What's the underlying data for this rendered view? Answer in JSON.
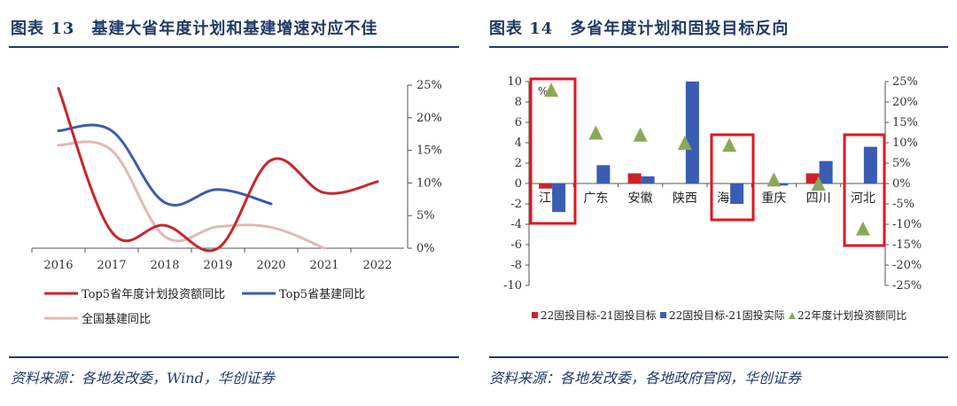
{
  "left": {
    "title": "图表 13　基建大省年度计划和基建增速对应不佳",
    "source": "资料来源：各地发改委，Wind，华创证券",
    "chart_data": {
      "type": "line",
      "x": [
        "2016",
        "2017",
        "2018",
        "2019",
        "2020",
        "2021",
        "2022"
      ],
      "y_right_ticks": [
        "25%",
        "20%",
        "15%",
        "10%",
        "5%",
        "0%"
      ],
      "ylim": [
        0,
        25
      ],
      "series": [
        {
          "name": "Top5省年度计划投资额同比",
          "color": "#c8262b",
          "values": [
            24.5,
            2.5,
            3.5,
            0.0,
            13.5,
            8.5,
            10.2
          ]
        },
        {
          "name": "Top5省基建同比",
          "color": "#3b5cb0",
          "values": [
            18.0,
            18.0,
            7.0,
            9.0,
            6.8,
            null,
            null
          ]
        },
        {
          "name": "全国基建同比",
          "color": "#e3b8b8",
          "values": [
            15.8,
            15.0,
            1.8,
            3.3,
            3.2,
            0.0,
            null
          ]
        }
      ]
    }
  },
  "right": {
    "title": "图表 14　多省年度计划和固投目标反向",
    "source": "资料来源：各地发改委，各地政府官网，华创证券",
    "chart_data": {
      "type": "bar",
      "categories": [
        "江西",
        "广东",
        "安徽",
        "陕西",
        "海南",
        "重庆",
        "四川",
        "河北"
      ],
      "percent_label": "%",
      "left_ticks": [
        "10",
        "8",
        "6",
        "4",
        "2",
        "0",
        "-2",
        "-4",
        "-6",
        "-8",
        "-10"
      ],
      "right_ticks": [
        "25%",
        "20%",
        "15%",
        "10%",
        "5%",
        "0%",
        "-5%",
        "-10%",
        "-15%",
        "-20%",
        "-25%"
      ],
      "left_range": [
        -10,
        10
      ],
      "right_range": [
        -25,
        25
      ],
      "series": [
        {
          "name": "22固投目标-21固投目标",
          "color": "#cc2229",
          "values": [
            -0.5,
            0.0,
            1.0,
            0.0,
            0.0,
            0.0,
            1.0,
            0.0
          ]
        },
        {
          "name": "22固投目标-21固投实际",
          "color": "#3a5db3",
          "values": [
            -2.8,
            1.8,
            0.7,
            10.0,
            -2.0,
            -0.2,
            2.2,
            3.6
          ]
        },
        {
          "name": "22年度计划投资额同比",
          "color": "#8aa957",
          "marker": "triangle",
          "axis": "right",
          "values": [
            23.0,
            12.5,
            12.0,
            10.0,
            9.5,
            1.0,
            0.0,
            -11.0
          ]
        }
      ],
      "highlighted": [
        "江西",
        "海南",
        "河北"
      ]
    }
  }
}
